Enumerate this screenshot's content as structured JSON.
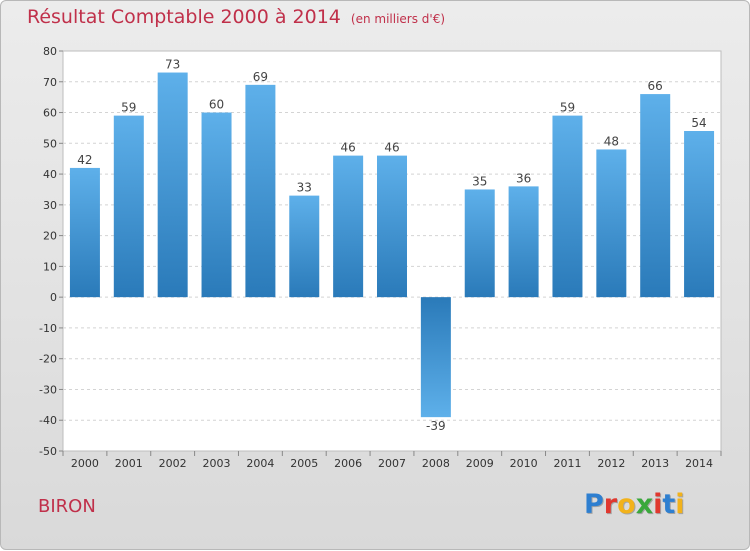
{
  "chart_data": {
    "type": "bar",
    "title": "Résultat Comptable 2000 à 2014",
    "subtitle": "(en milliers d'€)",
    "categories": [
      "2000",
      "2001",
      "2002",
      "2003",
      "2004",
      "2005",
      "2006",
      "2007",
      "2008",
      "2009",
      "2010",
      "2011",
      "2012",
      "2013",
      "2014"
    ],
    "values": [
      42,
      59,
      73,
      60,
      69,
      33,
      46,
      46,
      -39,
      35,
      36,
      59,
      48,
      66,
      54
    ],
    "ylim": [
      -50,
      80
    ],
    "yticks": [
      80,
      70,
      60,
      50,
      40,
      30,
      20,
      10,
      0,
      -10,
      -20,
      -30,
      -40,
      -50
    ],
    "xlabel": "",
    "ylabel": "",
    "grid": true,
    "colors": {
      "bar_top": "#5eb0ea",
      "bar_bottom": "#2a7ab9",
      "title": "#c0304a"
    }
  },
  "footer": {
    "commune": "BIRON",
    "logo": {
      "letters": [
        "P",
        "r",
        "o",
        "x",
        "i",
        "t",
        "i"
      ],
      "colors": [
        "#2e7fd0",
        "#e0382f",
        "#f2b21a",
        "#3aa83c",
        "#e0382f",
        "#2e7fd0",
        "#f2b21a"
      ]
    }
  }
}
